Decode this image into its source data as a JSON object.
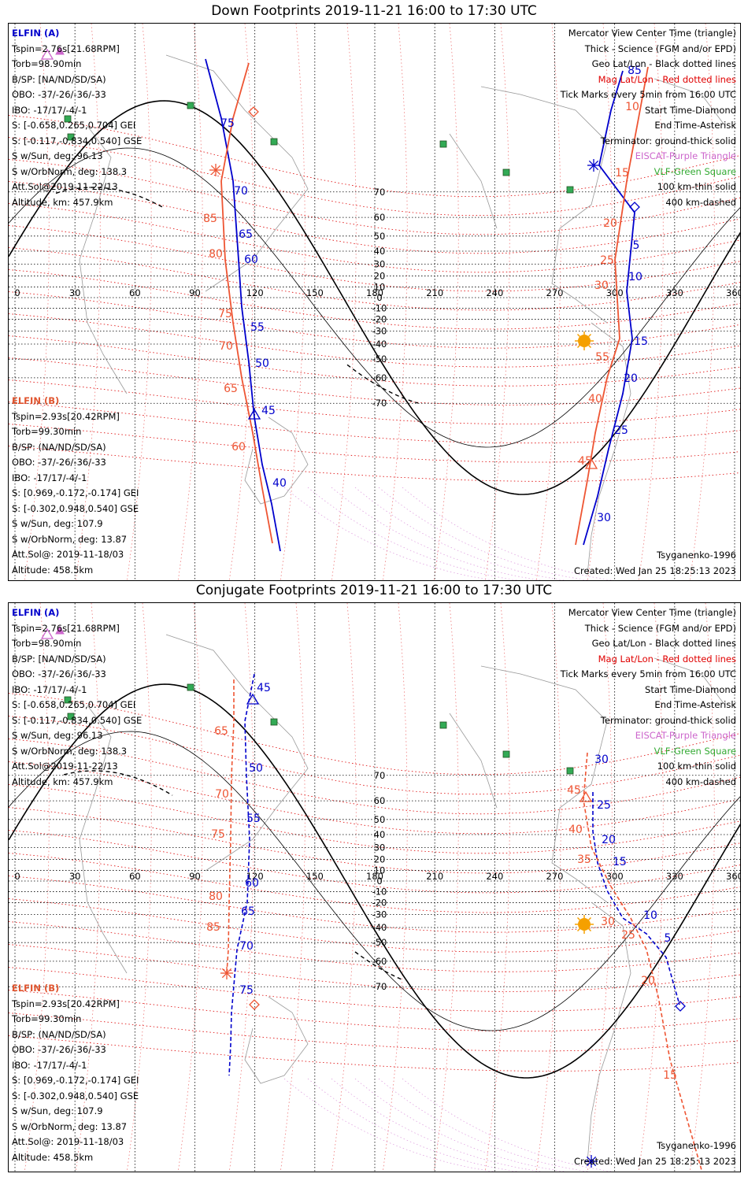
{
  "panels": [
    {
      "title": "Down Footprints 2019-11-21 16:00 to 17:30 UTC",
      "sat_a": {
        "name": "ELFIN (A)",
        "lines": [
          "Tspin=2.76s[21.68RPM]",
          "Torb=98.90min",
          "B/SP: [NA/ND/SD/SA)",
          "OBO: -37/-26/-36/-33",
          "IBO: -17/17/-4/-1",
          "S: [-0.658,0.265,0.704] GEI",
          "S: [-0.117,-0.834,0.540] GSE",
          "S w/Sun, deg: 96.13",
          "S w/OrbNorm, deg: 138.3",
          "Att.Sol@2019-11-22/13",
          "Altitude, km: 457.9km"
        ]
      },
      "sat_b": {
        "name": "ELFIN (B)",
        "lines": [
          "Tspin=2.93s[20.42RPM]",
          "Torb=99.30min",
          "B/SP: (NA/ND/SD/SA)",
          "OBO: -37/-26/-36/-33",
          "IBO: -17/17/-4/-1",
          "S: [0.969,-0.172,-0.174] GEI",
          "S: [-0.302,0.948,0.540] GSE",
          "S w/Sun, deg: 107.9",
          "S w/OrbNorm, deg: 13.87",
          "Att.Sol@: 2019-11-18/03",
          "Altitude: 458.5km"
        ]
      },
      "legend": [
        "Mercator View Center Time (triangle)",
        "Thick - Science (FGM and/or EPD)",
        "Geo Lat/Lon - Black dotted lines",
        "Mag Lat/Lon - Red dotted lines",
        "Tick Marks every 5min from 16:00 UTC",
        "Start Time-Diamond",
        "End Time-Asterisk",
        "Terminator: ground-thick solid",
        "EISCAT-Purple Triangle",
        "VLF-Green Square",
        "100 km-thin solid",
        "400 km-dashed"
      ],
      "model": "Tsyganenko-1996",
      "created": "Created: Wed Jan 25 18:25:13 2023",
      "labels_a_left": [
        "75",
        "70",
        "65",
        "60",
        "55",
        "50",
        "45",
        "40"
      ],
      "labels_b_left": [
        "85",
        "80",
        "75",
        "70",
        "65",
        "60"
      ],
      "labels_a_right": [
        "85",
        "5",
        "10",
        "15",
        "20",
        "25",
        "30"
      ],
      "labels_b_right": [
        "10",
        "15",
        "20",
        "25",
        "30",
        "55",
        "40",
        "45"
      ]
    },
    {
      "title": "Conjugate Footprints 2019-11-21 16:00 to 17:30 UTC",
      "sat_a": {
        "name": "ELFIN (A)",
        "lines": [
          "Tspin=2.76s[21.68RPM]",
          "Torb=98.90min",
          "B/SP: [NA/ND/SD/SA)",
          "OBO: -37/-26/-36/-33",
          "IBO: -17/17/-4/-1",
          "S: [-0.658,0.265,0.704] GEI",
          "S: [-0.117,-0.834,0.540] GSE",
          "S w/Sun, deg: 96.13",
          "S w/OrbNorm, deg: 138.3",
          "Att.Sol@2019-11-22/13",
          "Altitude, km: 457.9km"
        ]
      },
      "sat_b": {
        "name": "ELFIN (B)",
        "lines": [
          "Tspin=2.93s[20.42RPM]",
          "Torb=99.30min",
          "B/SP: (NA/ND/SD/SA)",
          "OBO: -37/-26/-36/-33",
          "IBO: -17/17/-4/-1",
          "S: [0.969,-0.172,-0.174] GEI",
          "S: [-0.302,0.948,0.540] GSE",
          "S w/Sun, deg: 107.9",
          "S w/OrbNorm, deg: 13.87",
          "Att.Sol@: 2019-11-18/03",
          "Altitude: 458.5km"
        ]
      },
      "legend": [
        "Mercator View Center Time (triangle)",
        "Thick - Science (FGM and/or EPD)",
        "Geo Lat/Lon - Black dotted lines",
        "Mag Lat/Lon - Red dotted lines",
        "Tick Marks every 5min from 16:00 UTC",
        "Start Time-Diamond",
        "End Time-Asterisk",
        "Terminator: ground-thick solid",
        "EISCAT-Purple Triangle",
        "VLF-Green Square",
        "100 km-thin solid",
        "400 km-dashed"
      ],
      "model": "Tsyganenko-1996",
      "created": "Created: Wed Jan 25 18:25:13 2023",
      "labels_a_left": [
        "45",
        "50",
        "55",
        "60",
        "65",
        "70",
        "75"
      ],
      "labels_b_left": [
        "65",
        "70",
        "75",
        "80",
        "85"
      ],
      "labels_a_right": [
        "30",
        "25",
        "20",
        "15",
        "10",
        "5"
      ],
      "labels_b_right": [
        "45",
        "40",
        "35",
        "30",
        "25",
        "20",
        "15"
      ]
    }
  ],
  "lon_ticks": [
    "0",
    "30",
    "60",
    "90",
    "120",
    "150",
    "180",
    "210",
    "240",
    "270",
    "300",
    "330",
    "360"
  ],
  "lat_ticks": [
    "70",
    "60",
    "50",
    "40",
    "30",
    "20",
    "10",
    "0",
    "-10",
    "-20",
    "-30",
    "-40",
    "-50",
    "-60",
    "-70"
  ],
  "colors": {
    "sat_a": "#0000cc",
    "sat_b": "#ee5533",
    "mag_grid": "#dd0000",
    "geo_grid": "#000000",
    "eiscat": "#cc66cc",
    "vlf": "#33aa55",
    "sun": "#f5a000",
    "coast": "#999999"
  }
}
